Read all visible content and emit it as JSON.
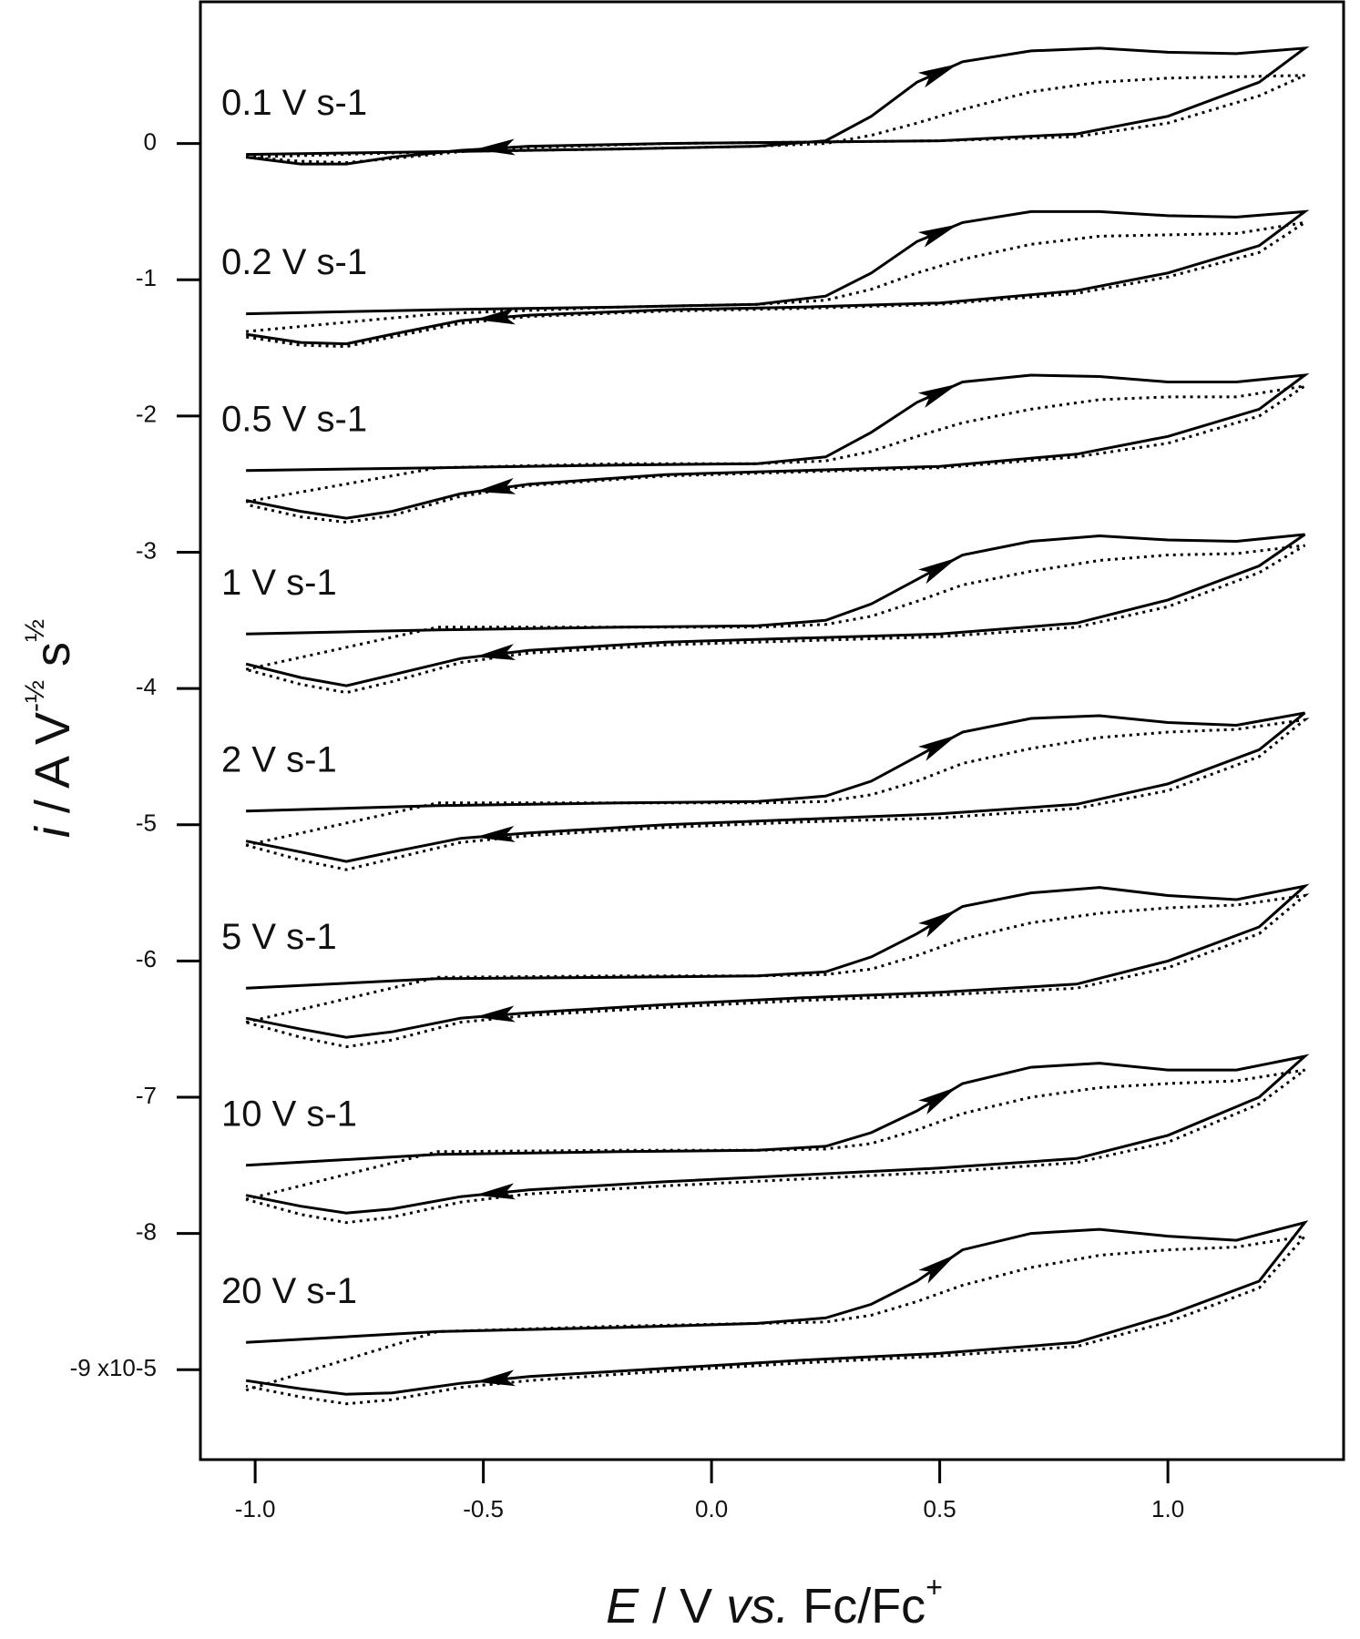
{
  "chart_data": {
    "type": "cv",
    "xlabel_parts": [
      "E",
      " / V ",
      "vs.",
      " Fc/Fc",
      "+"
    ],
    "ylabel_parts": [
      "i",
      " / A V",
      "-½",
      " s",
      "½"
    ],
    "xlim": [
      -1.12,
      1.385
    ],
    "ylim": [
      -9.66,
      1.04
    ],
    "xticks": [
      {
        "value": -1.0,
        "label": "-1.0"
      },
      {
        "value": -0.5,
        "label": "-0.5"
      },
      {
        "value": 0,
        "label": "0.0"
      },
      {
        "value": 0.5,
        "label": "0.5"
      },
      {
        "value": 1.0,
        "label": "1.0"
      }
    ],
    "yticks": [
      0,
      -1,
      -2,
      -3,
      -4,
      -5,
      -6,
      -7,
      -8,
      {
        "value": -9,
        "label": "-9 x10-5"
      }
    ],
    "x": [
      -1.02,
      -0.6,
      -0.2,
      0.1,
      0.25,
      0.35,
      0.45,
      0.55,
      0.7,
      0.85,
      1.0,
      1.15,
      1.3,
      1.2,
      1.0,
      0.8,
      0.5,
      0.2,
      -0.1,
      -0.4,
      -0.55,
      -0.7,
      -0.8,
      -0.9,
      -1.02
    ],
    "series": [
      {
        "name": "0.1 V s-1",
        "color": "#000000",
        "values": [
          -0.08,
          -0.06,
          -0.04,
          -0.02,
          0.02,
          0.2,
          0.45,
          0.6,
          0.68,
          0.7,
          0.67,
          0.66,
          0.7,
          0.45,
          0.2,
          0.07,
          0.02,
          0.01,
          0,
          -0.02,
          -0.05,
          -0.1,
          -0.15,
          -0.15,
          -0.1
        ],
        "dotted_values": [
          -0.1,
          -0.06,
          -0.04,
          -0.02,
          0,
          0.06,
          0.15,
          0.25,
          0.38,
          0.45,
          0.48,
          0.49,
          0.5,
          0.35,
          0.15,
          0.05,
          0.02,
          0.01,
          0,
          -0.03,
          -0.06,
          -0.11,
          -0.14,
          -0.13,
          -0.1
        ]
      },
      {
        "name": "0.2 V s-1",
        "color": "#000000",
        "values": [
          -1.25,
          -1.22,
          -1.2,
          -1.18,
          -1.12,
          -0.95,
          -0.72,
          -0.58,
          -0.5,
          -0.5,
          -0.53,
          -0.54,
          -0.5,
          -0.75,
          -0.95,
          -1.08,
          -1.17,
          -1.2,
          -1.22,
          -1.26,
          -1.3,
          -1.4,
          -1.47,
          -1.46,
          -1.4
        ],
        "dotted_values": [
          -1.38,
          -1.25,
          -1.2,
          -1.18,
          -1.15,
          -1.07,
          -0.95,
          -0.85,
          -0.74,
          -0.68,
          -0.67,
          -0.66,
          -0.58,
          -0.8,
          -0.98,
          -1.1,
          -1.18,
          -1.21,
          -1.23,
          -1.27,
          -1.32,
          -1.42,
          -1.49,
          -1.48,
          -1.42
        ]
      },
      {
        "name": "0.5 V s-1",
        "color": "#000000",
        "values": [
          -2.4,
          -2.38,
          -2.36,
          -2.35,
          -2.3,
          -2.12,
          -1.9,
          -1.75,
          -1.7,
          -1.71,
          -1.75,
          -1.75,
          -1.7,
          -1.95,
          -2.15,
          -2.28,
          -2.37,
          -2.4,
          -2.43,
          -2.5,
          -2.57,
          -2.7,
          -2.75,
          -2.7,
          -2.62
        ],
        "dotted_values": [
          -2.63,
          -2.38,
          -2.35,
          -2.35,
          -2.33,
          -2.26,
          -2.15,
          -2.05,
          -1.95,
          -1.88,
          -1.86,
          -1.86,
          -1.78,
          -2.0,
          -2.2,
          -2.3,
          -2.38,
          -2.41,
          -2.44,
          -2.51,
          -2.59,
          -2.73,
          -2.78,
          -2.74,
          -2.65
        ]
      },
      {
        "name": "1 V s-1",
        "color": "#000000",
        "values": [
          -3.6,
          -3.57,
          -3.55,
          -3.54,
          -3.5,
          -3.38,
          -3.2,
          -3.02,
          -2.92,
          -2.88,
          -2.91,
          -2.92,
          -2.87,
          -3.1,
          -3.35,
          -3.52,
          -3.6,
          -3.63,
          -3.66,
          -3.72,
          -3.78,
          -3.9,
          -3.98,
          -3.92,
          -3.82
        ],
        "dotted_values": [
          -3.86,
          -3.55,
          -3.55,
          -3.55,
          -3.53,
          -3.47,
          -3.36,
          -3.24,
          -3.14,
          -3.06,
          -3.02,
          -3.01,
          -2.95,
          -3.15,
          -3.4,
          -3.55,
          -3.62,
          -3.65,
          -3.68,
          -3.74,
          -3.81,
          -3.95,
          -4.03,
          -3.97,
          -3.86
        ]
      },
      {
        "name": "2 V s-1",
        "color": "#000000",
        "values": [
          -4.9,
          -4.86,
          -4.84,
          -4.83,
          -4.79,
          -4.68,
          -4.5,
          -4.32,
          -4.22,
          -4.2,
          -4.25,
          -4.27,
          -4.18,
          -4.45,
          -4.7,
          -4.85,
          -4.92,
          -4.96,
          -5.0,
          -5.06,
          -5.1,
          -5.2,
          -5.27,
          -5.2,
          -5.12
        ],
        "dotted_values": [
          -5.15,
          -4.84,
          -4.84,
          -4.84,
          -4.83,
          -4.78,
          -4.68,
          -4.55,
          -4.44,
          -4.36,
          -4.32,
          -4.3,
          -4.23,
          -4.5,
          -4.75,
          -4.88,
          -4.95,
          -4.98,
          -5.02,
          -5.08,
          -5.13,
          -5.25,
          -5.33,
          -5.26,
          -5.15
        ]
      },
      {
        "name": "5 V s-1",
        "color": "#000000",
        "values": [
          -6.2,
          -6.13,
          -6.12,
          -6.11,
          -6.08,
          -5.97,
          -5.8,
          -5.6,
          -5.5,
          -5.46,
          -5.52,
          -5.55,
          -5.45,
          -5.75,
          -6.0,
          -6.17,
          -6.23,
          -6.27,
          -6.32,
          -6.38,
          -6.42,
          -6.52,
          -6.56,
          -6.5,
          -6.42
        ],
        "dotted_values": [
          -6.45,
          -6.12,
          -6.11,
          -6.11,
          -6.1,
          -6.06,
          -5.96,
          -5.84,
          -5.72,
          -5.65,
          -5.61,
          -5.59,
          -5.52,
          -5.8,
          -6.05,
          -6.2,
          -6.25,
          -6.29,
          -6.34,
          -6.4,
          -6.45,
          -6.58,
          -6.63,
          -6.56,
          -6.45
        ]
      },
      {
        "name": "10 V s-1",
        "color": "#000000",
        "values": [
          -7.5,
          -7.42,
          -7.4,
          -7.39,
          -7.36,
          -7.26,
          -7.1,
          -6.9,
          -6.78,
          -6.75,
          -6.8,
          -6.8,
          -6.7,
          -7.0,
          -7.28,
          -7.45,
          -7.52,
          -7.57,
          -7.62,
          -7.68,
          -7.73,
          -7.82,
          -7.85,
          -7.8,
          -7.72
        ],
        "dotted_values": [
          -7.75,
          -7.4,
          -7.39,
          -7.39,
          -7.38,
          -7.34,
          -7.24,
          -7.12,
          -7.0,
          -6.93,
          -6.9,
          -6.88,
          -6.8,
          -7.05,
          -7.33,
          -7.48,
          -7.55,
          -7.6,
          -7.65,
          -7.71,
          -7.77,
          -7.88,
          -7.92,
          -7.86,
          -7.75
        ]
      },
      {
        "name": "20 V s-1",
        "color": "#000000",
        "values": [
          -8.8,
          -8.72,
          -8.69,
          -8.66,
          -8.62,
          -8.52,
          -8.35,
          -8.12,
          -8.0,
          -7.97,
          -8.02,
          -8.05,
          -7.92,
          -8.35,
          -8.6,
          -8.8,
          -8.88,
          -8.93,
          -8.99,
          -9.05,
          -9.1,
          -9.17,
          -9.18,
          -9.14,
          -9.08
        ],
        "dotted_values": [
          -9.15,
          -8.72,
          -8.68,
          -8.66,
          -8.65,
          -8.6,
          -8.5,
          -8.38,
          -8.25,
          -8.16,
          -8.12,
          -8.1,
          -8.02,
          -8.4,
          -8.65,
          -8.83,
          -8.9,
          -8.95,
          -9.01,
          -9.08,
          -9.13,
          -9.22,
          -9.25,
          -9.2,
          -9.12
        ]
      }
    ]
  }
}
